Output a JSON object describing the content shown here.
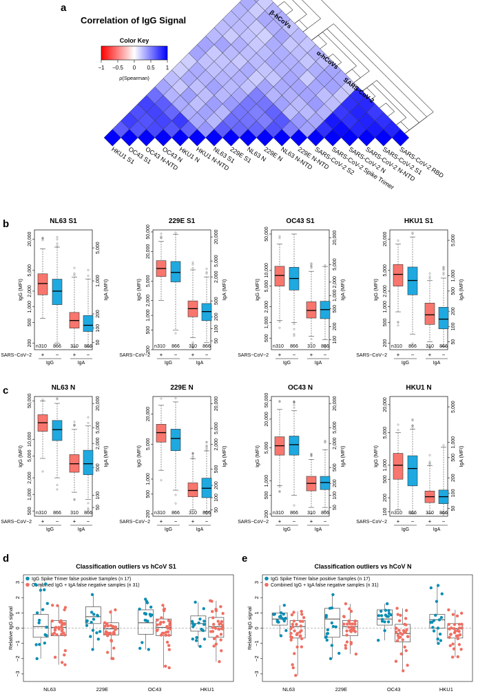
{
  "panel_a": {
    "label": "a",
    "title": "Correlation of IgG Signal",
    "color_key": {
      "title": "Color Key",
      "ticks": [
        "−1",
        "−0.5",
        "0",
        "0.5",
        "1"
      ],
      "axis_label": "ρ(Spearman)",
      "low_color": "#ff0000",
      "mid_color": "#ffffff",
      "high_color": "#0000ff"
    },
    "antigens": [
      "HKU1 S1",
      "OC43 S1",
      "OC43 N-NTD",
      "OC43 N",
      "HKU1 N",
      "HKU1 N-NTD",
      "NL63 S1",
      "229E S1",
      "NL63 N",
      "229E N",
      "NL63 N-NTD",
      "229E N-NTD",
      "SARS-CoV-2 S2",
      "SARS-CoV-2 Spike Trimer",
      "SARS-CoV-2 N",
      "SARS-CoV-2 N-NTD",
      "SARS-CoV-2 S1",
      "SARS-CoV-2 RBD"
    ],
    "clusters": [
      "β-hCoVs",
      "α-hCoVs",
      "SARS-CoV-2"
    ]
  },
  "boxplot_common": {
    "sars_label": "SARS−CoV−2",
    "plus": "+",
    "minus": "−",
    "n_prefix": "n",
    "n_pos": "310",
    "n_neg": "866",
    "group_igg": "IgG",
    "group_iga": "IgA",
    "ylabel_left": "IgG (MFI)",
    "ylabel_right": "IgA (MFI)",
    "pos_color": "#f8766d",
    "neg_color": "#1ea9e0"
  },
  "panel_b": {
    "label": "b"
  },
  "panel_c": {
    "label": "c"
  },
  "panel_d": {
    "label": "d",
    "title": "Classification outliers vs hCoV S1",
    "legend": [
      "IgG Spike Trimer false positive Samples (n 17)",
      "Combined IgG + IgA false negative samples (n 31)"
    ],
    "ylabel": "Relative IgG signal"
  },
  "panel_e": {
    "label": "e",
    "title": "Classification outliers vs hCoV N",
    "legend": [
      "IgG Spike Trimer false positive Samples (n 17)",
      "Combined IgG + IgA false negative samples (n 31)"
    ],
    "ylabel": "Relative IgG signal"
  },
  "scatter_colors": {
    "fp": "#0c8eb2",
    "fn": "#ef6f63"
  },
  "chart_data": [
    {
      "type": "heatmap",
      "title": "Correlation of IgG Signal",
      "labels": [
        "HKU1 S1",
        "OC43 S1",
        "OC43 N-NTD",
        "OC43 N",
        "HKU1 N",
        "HKU1 N-NTD",
        "NL63 S1",
        "229E S1",
        "NL63 N",
        "229E N",
        "NL63 N-NTD",
        "229E N-NTD",
        "SARS-CoV-2 S2",
        "SARS-CoV-2 Spike Trimer",
        "SARS-CoV-2 N",
        "SARS-CoV-2 N-NTD",
        "SARS-CoV-2 S1",
        "SARS-CoV-2 RBD"
      ],
      "group_of": [
        0,
        0,
        0,
        0,
        0,
        0,
        1,
        1,
        1,
        1,
        1,
        1,
        2,
        2,
        2,
        2,
        2,
        2
      ],
      "within_group_rho": [
        0.7,
        0.6,
        0.88
      ],
      "between_group_rho": 0.35,
      "color_range": [
        -1,
        1
      ]
    },
    {
      "type": "box",
      "panel": "b",
      "charts": [
        {
          "title": "NL63 S1",
          "igg_ticks": [
            200,
            500,
            1000,
            2000,
            5000,
            20000
          ],
          "iga_ticks": [
            50,
            100,
            200,
            1000,
            5000
          ],
          "igg_lim": [
            150,
            30000
          ],
          "iga_lim": [
            35,
            12000
          ],
          "boxes": [
            {
              "med": 2800,
              "q1": 1700,
              "q3": 4300,
              "lo": 600,
              "hi": 13000
            },
            {
              "med": 2000,
              "q1": 1100,
              "q3": 3400,
              "lo": 200,
              "hi": 14000
            },
            {
              "med": 145,
              "q1": 100,
              "q3": 215,
              "lo": 40,
              "hi": 1200
            },
            {
              "med": 115,
              "q1": 85,
              "q3": 185,
              "lo": 40,
              "hi": 1100
            }
          ]
        },
        {
          "title": "229E S1",
          "igg_ticks": [
            200,
            500,
            1000,
            2000,
            5000,
            20000,
            50000
          ],
          "iga_ticks": [
            50,
            100,
            200,
            500,
            2000,
            5000,
            20000
          ],
          "igg_lim": [
            200,
            55000
          ],
          "iga_lim": [
            30,
            30000
          ],
          "boxes": [
            {
              "med": 9000,
              "q1": 6200,
              "q3": 13000,
              "lo": 2000,
              "hi": 32000
            },
            {
              "med": 7500,
              "q1": 4800,
              "q3": 12500,
              "lo": 500,
              "hi": 45000
            },
            {
              "med": 320,
              "q1": 200,
              "q3": 500,
              "lo": 60,
              "hi": 3000
            },
            {
              "med": 270,
              "q1": 160,
              "q3": 430,
              "lo": 45,
              "hi": 2000
            }
          ]
        },
        {
          "title": "OC43 S1",
          "igg_ticks": [
            500,
            1000,
            2000,
            5000,
            10000,
            50000
          ],
          "iga_ticks": [
            100,
            200,
            500,
            1000,
            2000,
            5000,
            20000
          ],
          "igg_lim": [
            300,
            60000
          ],
          "iga_lim": [
            60,
            30000
          ],
          "boxes": [
            {
              "med": 8000,
              "q1": 5000,
              "q3": 12000,
              "lo": 1100,
              "hi": 32000
            },
            {
              "med": 7000,
              "q1": 4200,
              "q3": 11500,
              "lo": 1000,
              "hi": 50000
            },
            {
              "med": 460,
              "q1": 310,
              "q3": 720,
              "lo": 120,
              "hi": 3500
            },
            {
              "med": 480,
              "q1": 300,
              "q3": 740,
              "lo": 100,
              "hi": 4500
            }
          ]
        },
        {
          "title": "HKU1 S1",
          "igg_ticks": [
            200,
            500,
            1000,
            2000,
            5000,
            20000
          ],
          "iga_ticks": [
            50,
            100,
            200,
            500,
            1000,
            5000
          ],
          "igg_lim": [
            150,
            30000
          ],
          "iga_lim": [
            35,
            8000
          ],
          "boxes": [
            {
              "med": 4200,
              "q1": 2500,
              "q3": 6500,
              "lo": 800,
              "hi": 16000
            },
            {
              "med": 3200,
              "q1": 1700,
              "q3": 5800,
              "lo": 300,
              "hi": 22000
            },
            {
              "med": 170,
              "q1": 110,
              "q3": 290,
              "lo": 50,
              "hi": 800
            },
            {
              "med": 140,
              "q1": 90,
              "q3": 240,
              "lo": 40,
              "hi": 900
            }
          ]
        }
      ]
    },
    {
      "type": "box",
      "panel": "c",
      "charts": [
        {
          "title": "NL63 N",
          "igg_ticks": [
            500,
            1000,
            2000,
            5000,
            10000,
            50000
          ],
          "iga_ticks": [
            50,
            100,
            500,
            2000,
            5000,
            20000
          ],
          "igg_lim": [
            400,
            60000
          ],
          "iga_lim": [
            30,
            30000
          ],
          "boxes": [
            {
              "med": 20000,
              "q1": 14000,
              "q3": 28000,
              "lo": 4500,
              "hi": 50000
            },
            {
              "med": 15000,
              "q1": 9500,
              "q3": 22000,
              "lo": 2000,
              "hi": 45000
            },
            {
              "med": 620,
              "q1": 380,
              "q3": 1050,
              "lo": 120,
              "hi": 4500
            },
            {
              "med": 620,
              "q1": 330,
              "q3": 1350,
              "lo": 80,
              "hi": 5500
            }
          ]
        },
        {
          "title": "229E N",
          "igg_ticks": [
            200,
            500,
            1000,
            5000,
            20000
          ],
          "iga_ticks": [
            50,
            100,
            200,
            500,
            2000,
            5000,
            20000
          ],
          "igg_lim": [
            180,
            45000
          ],
          "iga_lim": [
            35,
            30000
          ],
          "boxes": [
            {
              "med": 8500,
              "q1": 5500,
              "q3": 12500,
              "lo": 1500,
              "hi": 30000
            },
            {
              "med": 6500,
              "q1": 3700,
              "q3": 10000,
              "lo": 600,
              "hi": 35000
            },
            {
              "med": 150,
              "q1": 105,
              "q3": 230,
              "lo": 50,
              "hi": 900
            },
            {
              "med": 170,
              "q1": 100,
              "q3": 300,
              "lo": 45,
              "hi": 1400
            }
          ]
        },
        {
          "title": "OC43 N",
          "igg_ticks": [
            200,
            500,
            1000,
            5000,
            20000,
            50000
          ],
          "iga_ticks": [
            50,
            100,
            200,
            500,
            2000,
            5000,
            20000
          ],
          "igg_lim": [
            180,
            60000
          ],
          "iga_lim": [
            30,
            30000
          ],
          "boxes": [
            {
              "med": 5500,
              "q1": 3500,
              "q3": 8500,
              "lo": 800,
              "hi": 32000
            },
            {
              "med": 5800,
              "q1": 3500,
              "q3": 8800,
              "lo": 500,
              "hi": 30000
            },
            {
              "med": 200,
              "q1": 130,
              "q3": 300,
              "lo": 50,
              "hi": 800
            },
            {
              "med": 210,
              "q1": 140,
              "q3": 300,
              "lo": 50,
              "hi": 1400
            }
          ]
        },
        {
          "title": "HKU1 N",
          "igg_ticks": [
            100,
            200,
            500,
            1000,
            5000,
            20000
          ],
          "iga_ticks": [
            50,
            100,
            200,
            500,
            1000,
            5000
          ],
          "igg_lim": [
            80,
            30000
          ],
          "iga_lim": [
            35,
            8000
          ],
          "boxes": [
            {
              "med": 1000,
              "q1": 500,
              "q3": 1800,
              "lo": 110,
              "hi": 5000
            },
            {
              "med": 850,
              "q1": 360,
              "q3": 1600,
              "lo": 90,
              "hi": 6000
            },
            {
              "med": 85,
              "q1": 65,
              "q3": 110,
              "lo": 40,
              "hi": 350
            },
            {
              "med": 85,
              "q1": 62,
              "q3": 115,
              "lo": 40,
              "hi": 800
            }
          ]
        }
      ]
    },
    {
      "type": "scatter",
      "panel": "d",
      "title": "Classification outliers vs hCoV S1",
      "ylabel": "Relative IgG signal",
      "categories": [
        "NL63",
        "229E",
        "OC43",
        "HKU1"
      ],
      "ylim": [
        -3.5,
        3.5
      ],
      "yticks": [
        -3,
        -2,
        -1,
        0,
        1,
        2,
        3
      ],
      "series": [
        {
          "name": "IgG Spike Trimer false positive Samples (n 17)",
          "boxes": [
            {
              "med": 0.1,
              "q1": -0.6,
              "q3": 0.9,
              "lo": -2.0,
              "hi": 2.9
            },
            {
              "med": 0.75,
              "q1": 0.3,
              "q3": 1.4,
              "lo": -1.4,
              "hi": 2.2
            },
            {
              "med": 0.35,
              "q1": -0.4,
              "q3": 1.2,
              "lo": -1.4,
              "hi": 1.9
            },
            {
              "med": 0.3,
              "q1": -0.2,
              "q3": 0.8,
              "lo": -1.2,
              "hi": 1.7
            }
          ]
        },
        {
          "name": "Combined IgG + IgA false negative samples (n 31)",
          "boxes": [
            {
              "med": 0.05,
              "q1": -0.5,
              "q3": 0.5,
              "lo": -2.4,
              "hi": 1.5
            },
            {
              "med": -0.05,
              "q1": -0.45,
              "q3": 0.35,
              "lo": -2.0,
              "hi": 1.2
            },
            {
              "med": 0.05,
              "q1": -0.5,
              "q3": 0.6,
              "lo": -2.6,
              "hi": 1.5
            },
            {
              "med": 0.1,
              "q1": -0.6,
              "q3": 0.7,
              "lo": -2.2,
              "hi": 1.8
            }
          ]
        }
      ]
    },
    {
      "type": "scatter",
      "panel": "e",
      "title": "Classification outliers vs hCoV N",
      "ylabel": "Relative IgG signal",
      "categories": [
        "NL63",
        "229E",
        "OC43",
        "HKU1"
      ],
      "ylim": [
        -3.5,
        3.5
      ],
      "yticks": [
        -3,
        -2,
        -1,
        0,
        1,
        2,
        3
      ],
      "series": [
        {
          "name": "IgG Spike Trimer false positive Samples (n 17)",
          "boxes": [
            {
              "med": 0.6,
              "q1": 0.2,
              "q3": 1.0,
              "lo": -0.5,
              "hi": 1.5
            },
            {
              "med": 0.6,
              "q1": -0.6,
              "q3": 1.3,
              "lo": -2.0,
              "hi": 2.2
            },
            {
              "med": 0.6,
              "q1": 0.2,
              "q3": 1.2,
              "lo": -0.8,
              "hi": 1.6
            },
            {
              "med": 0.55,
              "q1": 0.0,
              "q3": 0.9,
              "lo": -1.0,
              "hi": 2.8
            }
          ]
        },
        {
          "name": "Combined IgG + IgA false negative samples (n 31)",
          "boxes": [
            {
              "med": 0.1,
              "q1": -0.65,
              "q3": 0.5,
              "lo": -3.1,
              "hi": 1.1
            },
            {
              "med": 0.1,
              "q1": -0.5,
              "q3": 0.5,
              "lo": -1.7,
              "hi": 1.6
            },
            {
              "med": -0.35,
              "q1": -0.9,
              "q3": 0.25,
              "lo": -2.8,
              "hi": 1.3
            },
            {
              "med": -0.05,
              "q1": -0.65,
              "q3": 0.3,
              "lo": -1.9,
              "hi": 1.2
            }
          ]
        }
      ]
    }
  ]
}
